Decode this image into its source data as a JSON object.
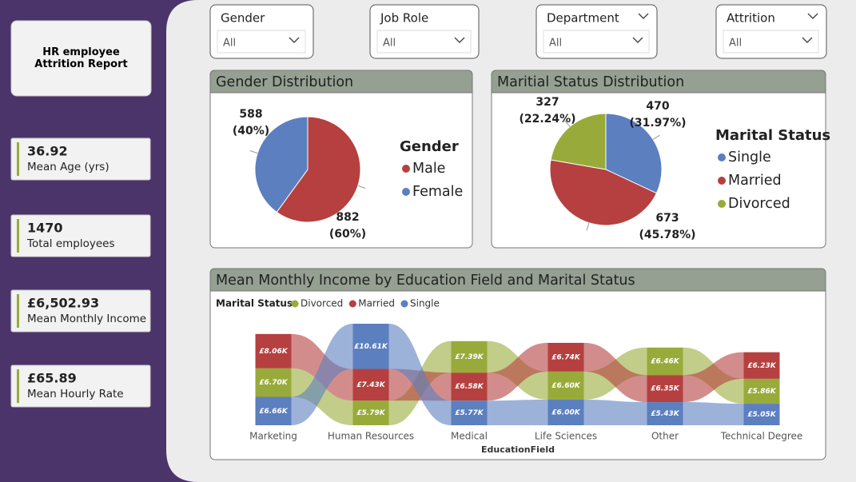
{
  "report_title": "HR employee Attrition Report",
  "kpis": [
    {
      "value": "36.92",
      "label": "Mean Age (yrs)"
    },
    {
      "value": "1470",
      "label": "Total employees"
    },
    {
      "value": "£6,502.93",
      "label": "Mean Monthly Income"
    },
    {
      "value": "£65.89",
      "label": "Mean Hourly Rate"
    }
  ],
  "filters": [
    {
      "label": "Gender",
      "value": "All"
    },
    {
      "label": "Job Role",
      "value": "All"
    },
    {
      "label": "Department",
      "value": "All"
    },
    {
      "label": "Attrition",
      "value": "All"
    }
  ],
  "chart_data": [
    {
      "type": "pie",
      "title": "Gender Distribution",
      "legend_title": "Gender",
      "categories": [
        "Male",
        "Female"
      ],
      "values": [
        882,
        588
      ],
      "percent_labels": [
        "(60%)",
        "(40%)"
      ],
      "colors": [
        "#b5403f",
        "#5b7fbf"
      ]
    },
    {
      "type": "pie",
      "title": "Maritial Status Distribution",
      "legend_title": "Marital Status",
      "categories": [
        "Single",
        "Married",
        "Divorced"
      ],
      "values": [
        470,
        673,
        327
      ],
      "percent_labels": [
        "(31.97%)",
        "(45.78%)",
        "(22.24%)"
      ],
      "colors": [
        "#5b7fbf",
        "#b5403f",
        "#98ab3a"
      ]
    },
    {
      "type": "ribbon",
      "title": "Mean Monthly Income by Education Field and Marital Status",
      "legend_title": "Marital Status",
      "x_label": "EducationField",
      "categories": [
        "Marketing",
        "Human Resources",
        "Medical",
        "Life Sciences",
        "Other",
        "Technical Degree"
      ],
      "series": [
        {
          "name": "Divorced",
          "color": "#98ab3a",
          "values": [
            6700,
            5790,
            7390,
            6600,
            6460,
            5860
          ],
          "value_labels": [
            "£6.70K",
            "£5.79K",
            "£7.39K",
            "£6.60K",
            "£6.46K",
            "£5.86K"
          ]
        },
        {
          "name": "Married",
          "color": "#b5403f",
          "values": [
            8060,
            7430,
            6580,
            6740,
            6350,
            6230
          ],
          "value_labels": [
            "£8.06K",
            "£7.43K",
            "£6.58K",
            "£6.74K",
            "£6.35K",
            "£6.23K"
          ]
        },
        {
          "name": "Single",
          "color": "#5b7fbf",
          "values": [
            6660,
            10610,
            5770,
            6000,
            5430,
            5050
          ],
          "value_labels": [
            "£6.66K",
            "£10.61K",
            "£5.77K",
            "£6.00K",
            "£5.43K",
            "£5.05K"
          ]
        }
      ]
    }
  ]
}
